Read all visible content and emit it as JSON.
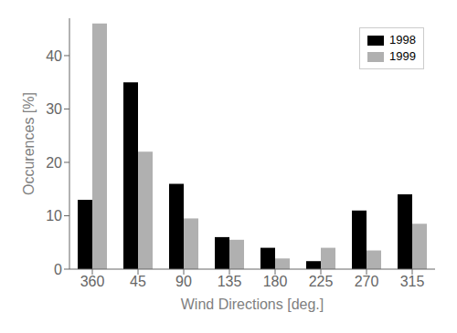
{
  "chart_data": {
    "type": "bar",
    "categories": [
      "360",
      "45",
      "90",
      "135",
      "180",
      "225",
      "270",
      "315"
    ],
    "series": [
      {
        "name": "1998",
        "color": "#000000",
        "values": [
          13,
          35,
          16,
          6,
          4,
          1.5,
          11,
          14
        ]
      },
      {
        "name": "1999",
        "color": "#b0b0b0",
        "values": [
          46,
          22,
          9.5,
          5.5,
          2,
          4,
          3.5,
          8.5
        ]
      }
    ],
    "xlabel": "Wind Directions  [deg.]",
    "ylabel": "Occurences  [%]",
    "ylim": [
      0,
      47
    ],
    "yticks": [
      0,
      10,
      20,
      30,
      40
    ],
    "grid": false,
    "legend": "upper right"
  }
}
